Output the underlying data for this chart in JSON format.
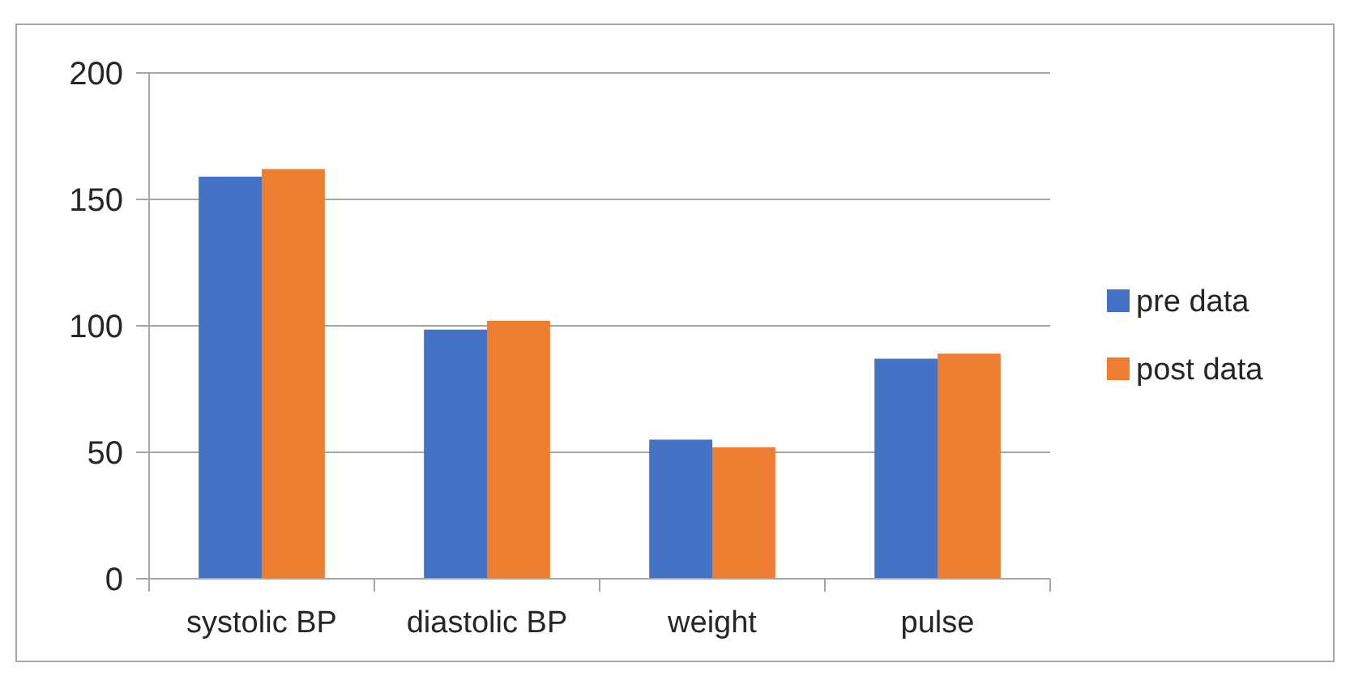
{
  "chart_data": {
    "type": "bar",
    "categories": [
      "systolic BP",
      "diastolic BP",
      "weight",
      "pulse"
    ],
    "series": [
      {
        "name": "pre data",
        "color": "#4472c4",
        "values": [
          159,
          98.5,
          55,
          87
        ]
      },
      {
        "name": "post data",
        "color": "#ed7d31",
        "values": [
          162,
          102,
          52,
          89
        ]
      }
    ],
    "ylim": [
      0,
      200
    ],
    "yticks": [
      0,
      50,
      100,
      150,
      200
    ],
    "grid": "y",
    "legend": "right"
  }
}
